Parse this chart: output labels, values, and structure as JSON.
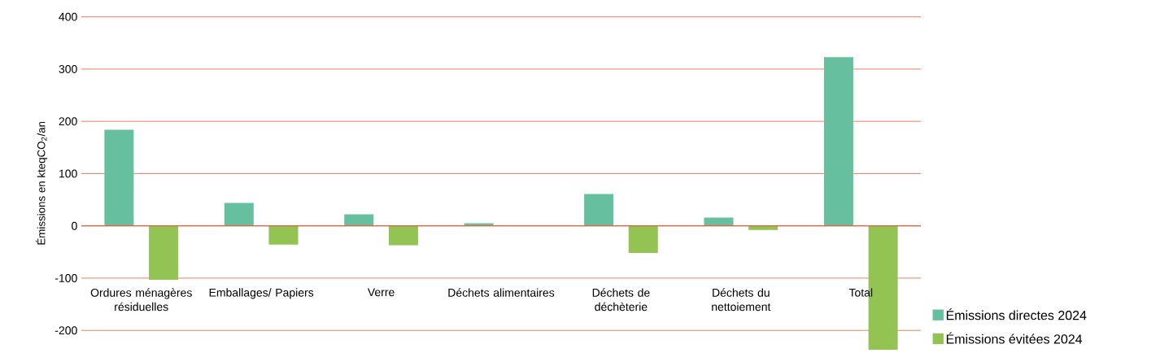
{
  "chart_data": {
    "type": "bar",
    "ylabel": "Émissions en kteqCO$_{2}$/an",
    "categories": [
      "Ordures ménagères résiduelles",
      "Emballages/ Papiers",
      "Verre",
      "Déchets alimentaires",
      "Déchets de déchèterie",
      "Déchets du nettoiement",
      "Total"
    ],
    "series": [
      {
        "name": "Émissions directes 2024",
        "color": "#66bf9f",
        "values": [
          184,
          44,
          22,
          5,
          61,
          16,
          323
        ]
      },
      {
        "name": "Émissions évitées 2024",
        "color": "#92c353",
        "values": [
          -103,
          -36,
          -37,
          0,
          -52,
          -8,
          -237
        ]
      }
    ],
    "ylim": [
      -237,
      400
    ],
    "yticks": [
      -200,
      -100,
      0,
      100,
      200,
      300,
      400
    ],
    "grid": "y",
    "legend": "bottom right"
  }
}
